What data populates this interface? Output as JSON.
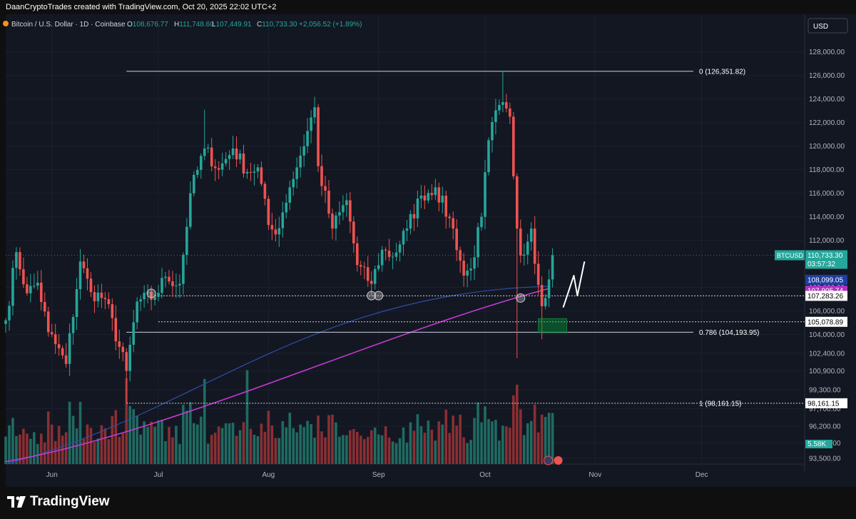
{
  "header": {
    "credit": "DaanCryptoTrades created with TradingView.com, Oct 20, 2025 22:02 UTC+2"
  },
  "legend": {
    "symbol": "Bitcoin / U.S. Dollar · 1D · Coinbase",
    "o_label": "O",
    "o": "108,676.77",
    "h_label": "H",
    "h": "111,748.60",
    "l_label": "L",
    "l": "107,449.91",
    "c_label": "C",
    "c": "110,733.30",
    "change": "+2,056.52 (+1.89%)"
  },
  "currency_button": "USD",
  "brand": {
    "name": "TradingView"
  },
  "colors": {
    "up": "#26a69a",
    "down": "#ef5350",
    "up_vol": "#1f6b62",
    "down_vol": "#8a2f33",
    "ma_fast": "#2f4ea8",
    "ma_slow": "#c43bd1",
    "bg": "#131722"
  },
  "chart_data": {
    "type": "candlestick",
    "timeframe": "1D",
    "y_axis_ticks": [
      "128,000.00",
      "126,000.00",
      "124,000.00",
      "122,000.00",
      "120,000.00",
      "118,000.00",
      "116,000.00",
      "114,000.00",
      "112,000.00",
      "108,000.00",
      "106,000.00",
      "104,000.00",
      "102,400.00",
      "100,900.00",
      "99,300.00",
      "97,700.00",
      "96,200.00",
      "94,800.00",
      "93,500.00"
    ],
    "x_axis_ticks": [
      {
        "label": "Jun",
        "date": "2025-06-01"
      },
      {
        "label": "Jul",
        "date": "2025-07-01"
      },
      {
        "label": "Aug",
        "date": "2025-08-01"
      },
      {
        "label": "Sep",
        "date": "2025-09-01"
      },
      {
        "label": "Oct",
        "date": "2025-10-01"
      },
      {
        "label": "Nov",
        "date": "2025-11-01"
      },
      {
        "label": "Dec",
        "date": "2025-12-01"
      }
    ],
    "x_range": [
      "2025-05-19",
      "2025-12-30"
    ],
    "price_range": [
      93000,
      129500
    ],
    "close_anchors": [
      [
        "2025-05-19",
        105200
      ],
      [
        "2025-05-22",
        111000
      ],
      [
        "2025-05-25",
        107500
      ],
      [
        "2025-05-28",
        108400
      ],
      [
        "2025-05-31",
        104200
      ],
      [
        "2025-06-05",
        101500
      ],
      [
        "2025-06-09",
        110200
      ],
      [
        "2025-06-12",
        107600
      ],
      [
        "2025-06-16",
        107000
      ],
      [
        "2025-06-22",
        100900
      ],
      [
        "2025-06-25",
        106800
      ],
      [
        "2025-06-30",
        107200
      ],
      [
        "2025-07-03",
        108900
      ],
      [
        "2025-07-07",
        108300
      ],
      [
        "2025-07-10",
        116000
      ],
      [
        "2025-07-14",
        119800
      ],
      [
        "2025-07-18",
        118000
      ],
      [
        "2025-07-22",
        119800
      ],
      [
        "2025-07-26",
        117800
      ],
      [
        "2025-07-29",
        118200
      ],
      [
        "2025-08-01",
        113300
      ],
      [
        "2025-08-03",
        112500
      ],
      [
        "2025-08-07",
        116500
      ],
      [
        "2025-08-10",
        119200
      ],
      [
        "2025-08-14",
        123300
      ],
      [
        "2025-08-15",
        118300
      ],
      [
        "2025-08-19",
        113000
      ],
      [
        "2025-08-23",
        115400
      ],
      [
        "2025-08-26",
        109900
      ],
      [
        "2025-08-30",
        108300
      ],
      [
        "2025-09-02",
        111200
      ],
      [
        "2025-09-05",
        110600
      ],
      [
        "2025-09-09",
        113000
      ],
      [
        "2025-09-13",
        115800
      ],
      [
        "2025-09-17",
        116500
      ],
      [
        "2025-09-22",
        113000
      ],
      [
        "2025-09-25",
        109000
      ],
      [
        "2025-09-27",
        109600
      ],
      [
        "2025-09-30",
        114000
      ],
      [
        "2025-10-02",
        120500
      ],
      [
        "2025-10-05",
        123500
      ],
      [
        "2025-10-08",
        122500
      ],
      [
        "2025-10-10",
        113000
      ],
      [
        "2025-10-11",
        110700
      ],
      [
        "2025-10-14",
        113000
      ],
      [
        "2025-10-16",
        108200
      ],
      [
        "2025-10-17",
        106400
      ],
      [
        "2025-10-18",
        107100
      ],
      [
        "2025-10-19",
        108677
      ],
      [
        "2025-10-20",
        110733
      ]
    ],
    "wick_extremes": [
      {
        "date": "2025-06-22",
        "low": 98161
      },
      {
        "date": "2025-10-06",
        "high": 126352
      },
      {
        "date": "2025-10-10",
        "low": 102000
      },
      {
        "date": "2025-08-14",
        "high": 124200
      },
      {
        "date": "2025-07-14",
        "high": 123100
      },
      {
        "date": "2025-10-17",
        "low": 103600
      }
    ],
    "moving_averages": [
      {
        "color_key": "ma_fast",
        "value": 108099.05,
        "start": [
          "2025-05-19",
          93000
        ],
        "end": [
          "2025-10-19",
          108099
        ]
      },
      {
        "color_key": "ma_slow",
        "value": 107905.74,
        "start": [
          "2025-05-19",
          93200
        ],
        "end": [
          "2025-10-19",
          107906
        ]
      }
    ],
    "volume": {
      "last": "5.58K",
      "spikes": [
        {
          "date": "2025-06-22"
        },
        {
          "date": "2025-07-26"
        },
        {
          "date": "2025-07-14"
        },
        {
          "date": "2025-10-10"
        }
      ]
    },
    "price_labels": [
      {
        "text": "BTCUSD",
        "value": "110,733.30",
        "sub": "03:57:32",
        "price": 110733.3,
        "kind": "last"
      },
      {
        "value": "108,099.05",
        "price": 108099.05,
        "kind": "ma_fast"
      },
      {
        "value": "107,905.74",
        "price": 107905.74,
        "kind": "ma_slow"
      },
      {
        "value": "107,283.26",
        "price": 107283.26,
        "kind": "hline"
      },
      {
        "value": "105,078.89",
        "price": 105078.89,
        "kind": "hline"
      },
      {
        "value": "98,161.15",
        "price": 98161.15,
        "kind": "hline"
      }
    ],
    "fib_levels": [
      {
        "ratio": "0",
        "label": "0 (126,351.82)",
        "price": 126351.82,
        "style": "solid"
      },
      {
        "ratio": "0.786",
        "label": "0.786 (104,193.95)",
        "price": 104193.95,
        "style": "solid"
      },
      {
        "ratio": "1",
        "label": "1 (98,161.15)",
        "price": 98161.15,
        "style": "dotted"
      }
    ],
    "support_lines": [
      {
        "price": 107283.26,
        "from": "2025-06-30",
        "style": "dotted"
      },
      {
        "price": 105078.89,
        "from": "2025-07-01",
        "style": "dotted"
      }
    ],
    "fib_start_date": "2025-06-22",
    "touch_circles": [
      {
        "date": "2025-06-29",
        "price": 107500
      },
      {
        "date": "2025-08-30",
        "price": 107300
      },
      {
        "date": "2025-09-01",
        "price": 107300
      },
      {
        "date": "2025-10-11",
        "price": 107100
      }
    ],
    "zone": {
      "from": "2025-10-16",
      "to": "2025-10-24",
      "low": 104150,
      "high": 105350
    },
    "projection_path": [
      [
        "2025-10-23",
        106300
      ],
      [
        "2025-10-26",
        109000
      ],
      [
        "2025-10-27",
        107300
      ],
      [
        "2025-10-29",
        110200
      ]
    ]
  }
}
